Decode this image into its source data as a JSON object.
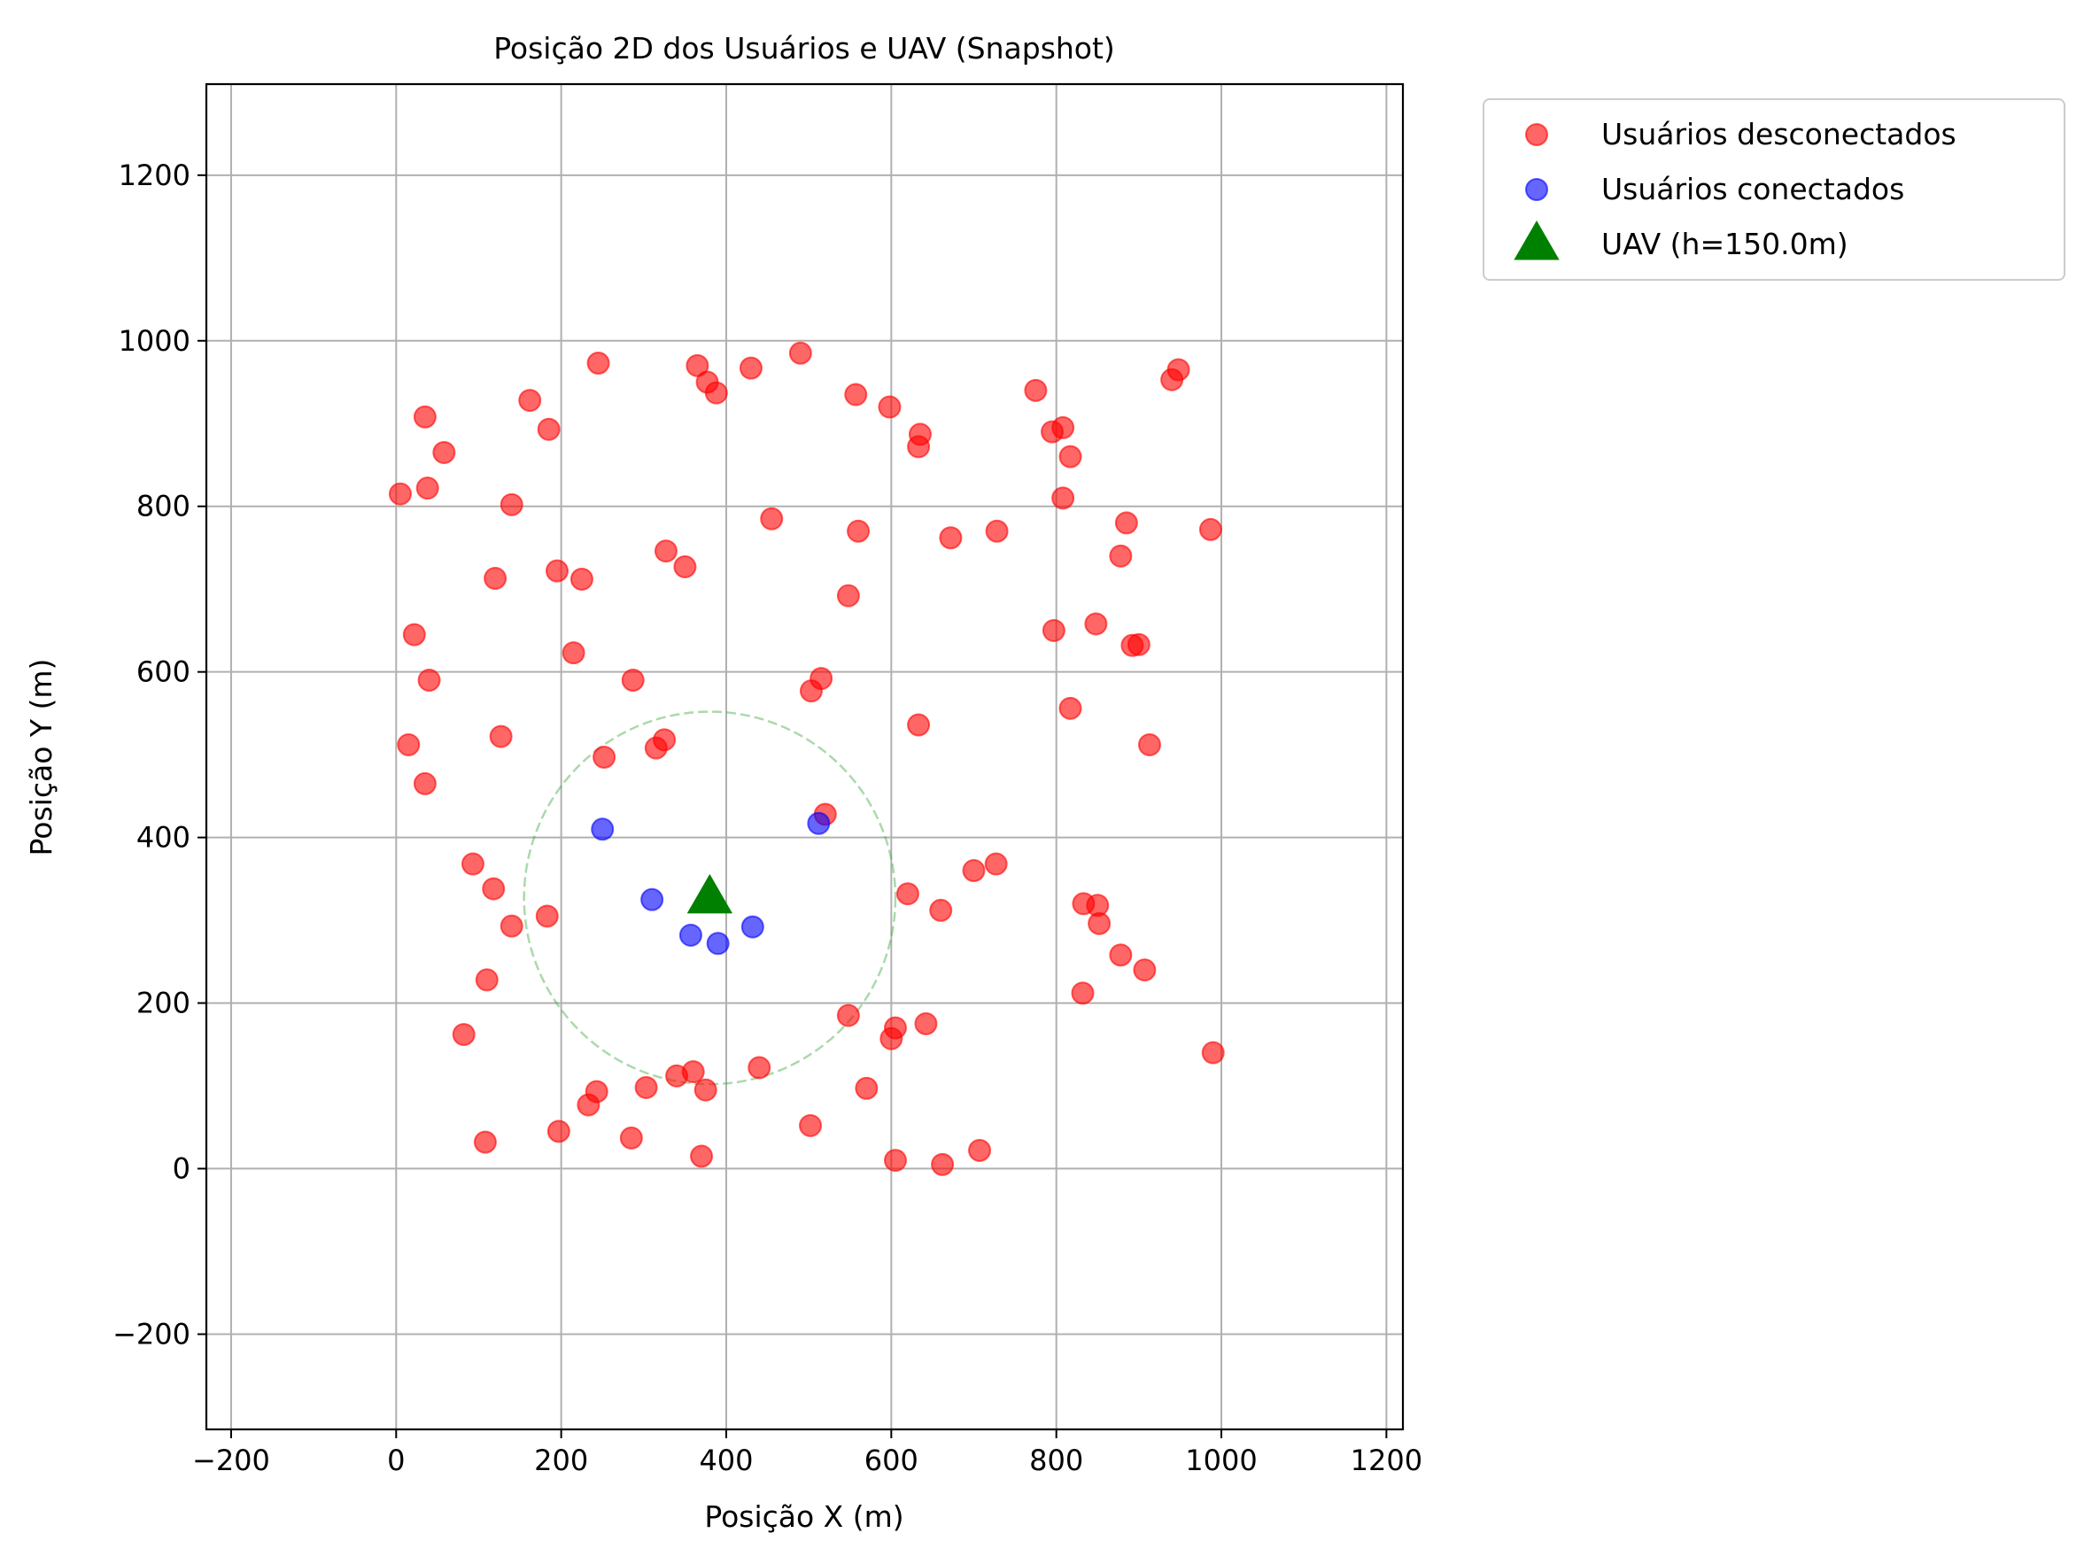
{
  "chart_data": {
    "type": "scatter",
    "title": "Posição 2D dos Usuários e UAV (Snapshot)",
    "xlabel": "Posição X (m)",
    "ylabel": "Posição Y (m)",
    "xlim": [
      -230,
      1220
    ],
    "ylim": [
      -315,
      1310
    ],
    "xticks": [
      -200,
      0,
      200,
      400,
      600,
      800,
      1000,
      1200
    ],
    "yticks": [
      -200,
      0,
      200,
      400,
      600,
      800,
      1000,
      1200
    ],
    "grid": true,
    "legend_position": "outside top-right",
    "coverage_circle": {
      "center": [
        380,
        327
      ],
      "radius": 225,
      "color": "#2ca02c",
      "style": "dashed"
    },
    "series": [
      {
        "name": "Usuários desconectados",
        "color": "#ff0000",
        "marker": "circle",
        "points": [
          [
            5,
            815
          ],
          [
            35,
            908
          ],
          [
            38,
            822
          ],
          [
            58,
            865
          ],
          [
            22,
            645
          ],
          [
            40,
            590
          ],
          [
            15,
            512
          ],
          [
            35,
            465
          ],
          [
            162,
            928
          ],
          [
            185,
            893
          ],
          [
            140,
            802
          ],
          [
            120,
            713
          ],
          [
            195,
            722
          ],
          [
            225,
            712
          ],
          [
            215,
            623
          ],
          [
            127,
            522
          ],
          [
            245,
            973
          ],
          [
            365,
            970
          ],
          [
            377,
            950
          ],
          [
            388,
            937
          ],
          [
            430,
            967
          ],
          [
            490,
            985
          ],
          [
            557,
            935
          ],
          [
            598,
            920
          ],
          [
            635,
            887
          ],
          [
            633,
            872
          ],
          [
            455,
            785
          ],
          [
            560,
            770
          ],
          [
            327,
            746
          ],
          [
            350,
            727
          ],
          [
            548,
            692
          ],
          [
            287,
            590
          ],
          [
            515,
            592
          ],
          [
            503,
            577
          ],
          [
            633,
            536
          ],
          [
            325,
            518
          ],
          [
            315,
            508
          ],
          [
            252,
            497
          ],
          [
            520,
            428
          ],
          [
            775,
            940
          ],
          [
            808,
            895
          ],
          [
            795,
            890
          ],
          [
            817,
            860
          ],
          [
            808,
            810
          ],
          [
            672,
            762
          ],
          [
            728,
            770
          ],
          [
            885,
            780
          ],
          [
            878,
            740
          ],
          [
            797,
            650
          ],
          [
            848,
            658
          ],
          [
            892,
            632
          ],
          [
            900,
            633
          ],
          [
            817,
            556
          ],
          [
            913,
            512
          ],
          [
            940,
            953
          ],
          [
            948,
            965
          ],
          [
            987,
            772
          ],
          [
            93,
            368
          ],
          [
            118,
            338
          ],
          [
            140,
            293
          ],
          [
            183,
            305
          ],
          [
            110,
            228
          ],
          [
            82,
            162
          ],
          [
            108,
            32
          ],
          [
            197,
            45
          ],
          [
            285,
            37
          ],
          [
            370,
            15
          ],
          [
            233,
            77
          ],
          [
            243,
            93
          ],
          [
            303,
            98
          ],
          [
            340,
            112
          ],
          [
            360,
            117
          ],
          [
            375,
            95
          ],
          [
            440,
            122
          ],
          [
            502,
            52
          ],
          [
            548,
            185
          ],
          [
            570,
            97
          ],
          [
            605,
            170
          ],
          [
            600,
            157
          ],
          [
            620,
            332
          ],
          [
            642,
            175
          ],
          [
            660,
            312
          ],
          [
            700,
            360
          ],
          [
            727,
            368
          ],
          [
            833,
            320
          ],
          [
            850,
            318
          ],
          [
            852,
            296
          ],
          [
            878,
            258
          ],
          [
            832,
            212
          ],
          [
            907,
            240
          ],
          [
            990,
            140
          ],
          [
            605,
            10
          ],
          [
            662,
            5
          ],
          [
            707,
            22
          ]
        ]
      },
      {
        "name": "Usuários conectados",
        "color": "#0000ff",
        "marker": "circle",
        "points": [
          [
            250,
            410
          ],
          [
            310,
            325
          ],
          [
            357,
            282
          ],
          [
            390,
            272
          ],
          [
            432,
            292
          ],
          [
            512,
            417
          ]
        ]
      },
      {
        "name": "UAV (h=150.0m)",
        "color": "#008000",
        "marker": "triangle",
        "points": [
          [
            380,
            327
          ]
        ]
      }
    ]
  }
}
